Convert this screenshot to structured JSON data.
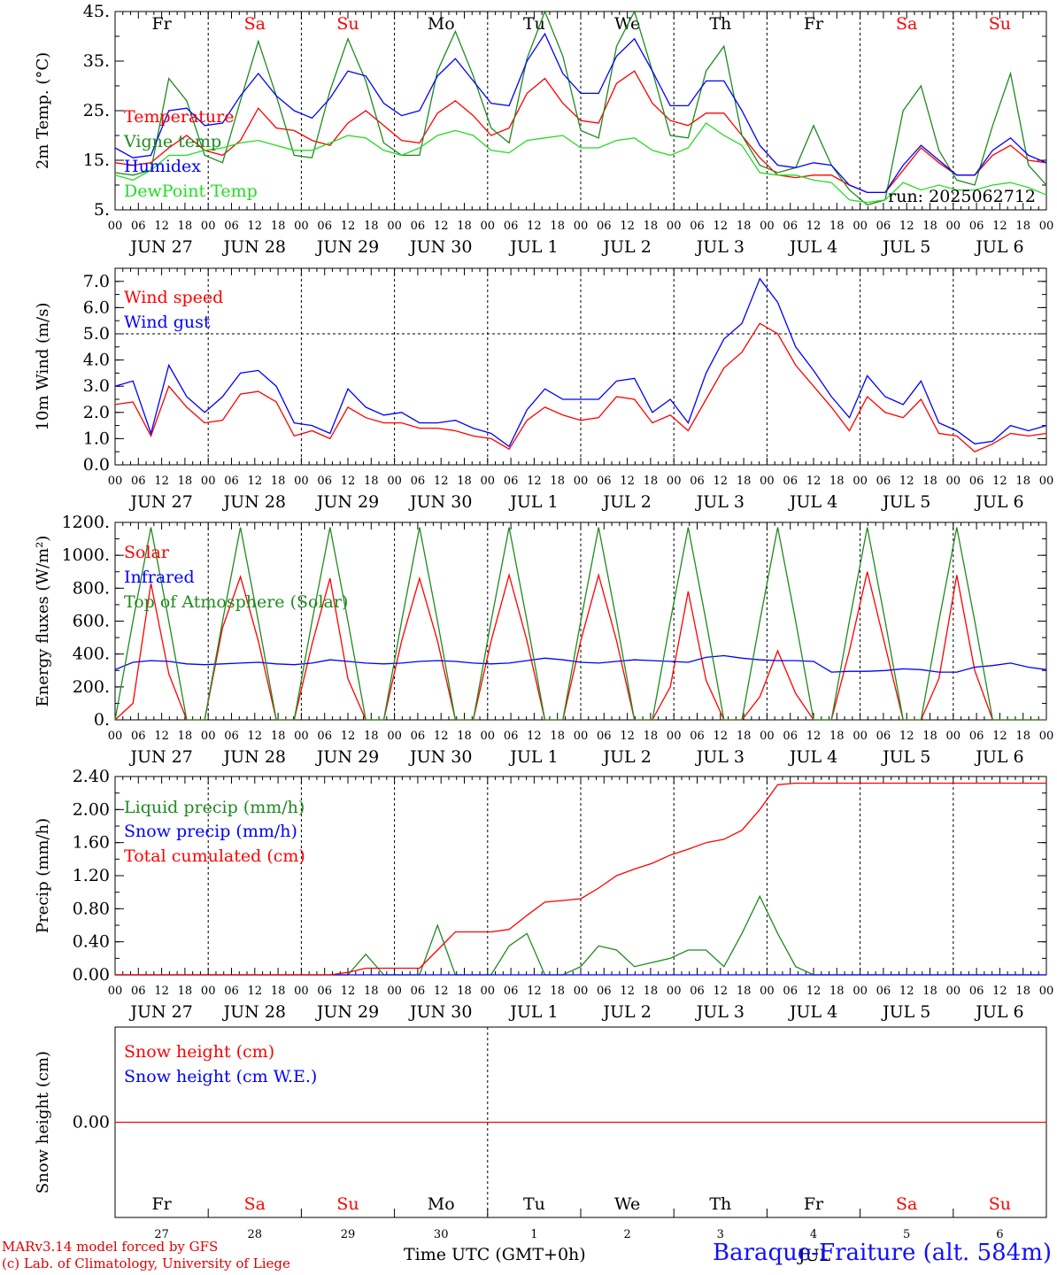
{
  "colors": {
    "temperature": "#ff0000",
    "vigne": "#1f8a1f",
    "humidex": "#0000ff",
    "dewpoint": "#22dd22",
    "weekend": "#ff0000",
    "weekday": "#000000"
  },
  "days": [
    {
      "abbr": "Fr",
      "weekend": false,
      "date": "JUN 27",
      "num": "27"
    },
    {
      "abbr": "Sa",
      "weekend": true,
      "date": "JUN 28",
      "num": "28"
    },
    {
      "abbr": "Su",
      "weekend": true,
      "date": "JUN 29",
      "num": "29"
    },
    {
      "abbr": "Mo",
      "weekend": false,
      "date": "JUN 30",
      "num": "30"
    },
    {
      "abbr": "Tu",
      "weekend": false,
      "date": "JUL  1",
      "num": "1"
    },
    {
      "abbr": "We",
      "weekend": false,
      "date": "JUL  2",
      "num": "2"
    },
    {
      "abbr": "Th",
      "weekend": false,
      "date": "JUL  3",
      "num": "3"
    },
    {
      "abbr": "Fr",
      "weekend": false,
      "date": "JUL  4",
      "num": "4"
    },
    {
      "abbr": "Sa",
      "weekend": true,
      "date": "JUL  5",
      "num": "5"
    },
    {
      "abbr": "Su",
      "weekend": true,
      "date": "JUL  6",
      "num": "6"
    }
  ],
  "hour_ticks": [
    "00",
    "06",
    "12",
    "18"
  ],
  "footer": {
    "model_line1": "MARv3.14 model forced by GFS",
    "model_line2": "(c) Lab. of Climatology, University of Liege",
    "xlabel": "Time UTC (GMT+0h)",
    "station": "Baraque-Fraiture (alt. 584m)",
    "overlap_text": "JUL"
  },
  "chart_data": [
    {
      "type": "line",
      "ylabel": "2m Temp. (°C)",
      "ylim": [
        5,
        45
      ],
      "yticks": [
        "5.",
        "15.",
        "25.",
        "35.",
        "45."
      ],
      "annotation": "run: 2025062712",
      "show_day_abbr": true,
      "x_hours_step": 6,
      "series": [
        {
          "name": "Temperature",
          "color": "#ff0000",
          "values": [
            14.5,
            14,
            14.5,
            17.5,
            20,
            17,
            16,
            19,
            25.5,
            21.5,
            21,
            19,
            18,
            22.5,
            25,
            22,
            19,
            18.5,
            24.5,
            27,
            24,
            20,
            21.5,
            28.5,
            31.5,
            26.5,
            23,
            22.5,
            30.5,
            33,
            26.5,
            23,
            22,
            24.5,
            24.5,
            20,
            15.5,
            12,
            11.5,
            12,
            12,
            10,
            8.5,
            8.5,
            13,
            17.5,
            14.5,
            12,
            12,
            16,
            18,
            15,
            14.5
          ]
        },
        {
          "name": "Vigne temp",
          "color": "#1f8a1f",
          "values": [
            12.5,
            12,
            13,
            31.5,
            27,
            16,
            14.5,
            27,
            39,
            28,
            16,
            15.5,
            29,
            39.5,
            31,
            18.5,
            16,
            16,
            33,
            41,
            32,
            21.5,
            18.5,
            35.5,
            45,
            36,
            21,
            19.5,
            38,
            45,
            33,
            20,
            19.5,
            33,
            38,
            20,
            14,
            12.5,
            13.5,
            22,
            14,
            9,
            6,
            7,
            25,
            30,
            17,
            11,
            10,
            22,
            32.5,
            14,
            10
          ]
        },
        {
          "name": "Humidex",
          "color": "#0000ff",
          "values": [
            17.5,
            15.5,
            16,
            25,
            25.5,
            22,
            22.5,
            28,
            32.5,
            28,
            25,
            23.5,
            27.5,
            33,
            32,
            26.5,
            24,
            25,
            32,
            35.5,
            31,
            26.5,
            26,
            35,
            40.5,
            32.5,
            28.5,
            28.5,
            36,
            39.5,
            33,
            26,
            26,
            31,
            31,
            25,
            18,
            14,
            13.5,
            14.5,
            14,
            10,
            8.5,
            8.5,
            14,
            18,
            15,
            12,
            12,
            17,
            19.5,
            16,
            14.5
          ]
        },
        {
          "name": "DewPoint Temp",
          "color": "#22dd22",
          "values": [
            12,
            11,
            13,
            16,
            16,
            17,
            17.5,
            18.5,
            19,
            18,
            17,
            17,
            18.5,
            20,
            19.5,
            17,
            16,
            17.5,
            20,
            21,
            20,
            17,
            16.5,
            19,
            19.5,
            20,
            17.5,
            17.5,
            19,
            19.5,
            17,
            16,
            17.5,
            22.5,
            20,
            18,
            12.5,
            12,
            12,
            11,
            10.5,
            7,
            6.5,
            7,
            10.5,
            9,
            10,
            9,
            9,
            10,
            10.5,
            9.5,
            8
          ]
        }
      ]
    },
    {
      "type": "line",
      "ylabel": "10m Wind (m/s)",
      "ylim": [
        0,
        7.5
      ],
      "yticks": [
        "0.0",
        "1.0",
        "2.0",
        "3.0",
        "4.0",
        "5.0",
        "6.0",
        "7.0"
      ],
      "hline": 5.0,
      "show_day_abbr": false,
      "x_hours_step": 6,
      "series": [
        {
          "name": "Wind speed",
          "color": "#ff0000",
          "values": [
            2.3,
            2.4,
            1.1,
            3.0,
            2.2,
            1.6,
            1.7,
            2.7,
            2.8,
            2.4,
            1.1,
            1.3,
            1.0,
            2.2,
            1.8,
            1.6,
            1.6,
            1.4,
            1.4,
            1.3,
            1.1,
            1.0,
            0.6,
            1.7,
            2.2,
            1.9,
            1.7,
            1.8,
            2.6,
            2.5,
            1.6,
            1.9,
            1.3,
            2.5,
            3.7,
            4.3,
            5.4,
            5.0,
            3.8,
            3.0,
            2.2,
            1.3,
            2.6,
            2.0,
            1.8,
            2.5,
            1.2,
            1.1,
            0.5,
            0.8,
            1.2,
            1.1,
            1.2
          ]
        },
        {
          "name": "Wind gust",
          "color": "#0000ff",
          "values": [
            3.0,
            3.2,
            1.2,
            3.8,
            2.6,
            2.0,
            2.6,
            3.5,
            3.6,
            3.0,
            1.6,
            1.5,
            1.2,
            2.9,
            2.2,
            1.9,
            2.0,
            1.6,
            1.6,
            1.7,
            1.4,
            1.2,
            0.7,
            2.1,
            2.9,
            2.5,
            2.5,
            2.5,
            3.2,
            3.3,
            2.0,
            2.5,
            1.6,
            3.5,
            4.8,
            5.4,
            7.1,
            6.2,
            4.5,
            3.6,
            2.6,
            1.8,
            3.4,
            2.6,
            2.3,
            3.2,
            1.6,
            1.3,
            0.8,
            0.9,
            1.5,
            1.3,
            1.5
          ]
        }
      ]
    },
    {
      "type": "line",
      "ylabel": "Energy fluxes (W/m²)",
      "ylim": [
        0,
        1200
      ],
      "yticks": [
        "0.",
        "200.",
        "400.",
        "600.",
        "800.",
        "1000.",
        "1200."
      ],
      "show_day_abbr": false,
      "x_hours_step": 6,
      "series": [
        {
          "name": "Solar",
          "color": "#ff0000",
          "values": [
            0,
            100,
            830,
            280,
            0,
            0,
            560,
            870,
            480,
            0,
            0,
            460,
            860,
            250,
            0,
            0,
            480,
            860,
            480,
            0,
            0,
            480,
            880,
            480,
            0,
            0,
            480,
            880,
            480,
            0,
            0,
            200,
            780,
            240,
            0,
            0,
            140,
            420,
            160,
            0,
            0,
            420,
            900,
            450,
            0,
            0,
            250,
            880,
            300,
            0,
            0,
            0,
            0
          ]
        },
        {
          "name": "Infrared",
          "color": "#0000ff",
          "values": [
            305,
            350,
            360,
            355,
            340,
            335,
            340,
            345,
            350,
            340,
            335,
            345,
            365,
            355,
            345,
            340,
            345,
            355,
            360,
            355,
            345,
            340,
            345,
            360,
            375,
            365,
            350,
            345,
            355,
            365,
            360,
            355,
            350,
            380,
            390,
            375,
            365,
            360,
            360,
            355,
            290,
            295,
            295,
            300,
            310,
            305,
            290,
            290,
            320,
            330,
            345,
            320,
            305
          ]
        },
        {
          "name": "Top of Atmosphere (Solar)",
          "color": "#1f8a1f",
          "values": [
            0,
            600,
            1170,
            600,
            0,
            0,
            600,
            1170,
            600,
            0,
            0,
            600,
            1170,
            600,
            0,
            0,
            600,
            1170,
            600,
            0,
            0,
            600,
            1170,
            600,
            0,
            0,
            600,
            1170,
            600,
            0,
            0,
            600,
            1170,
            600,
            0,
            0,
            600,
            1170,
            600,
            0,
            0,
            600,
            1170,
            600,
            0,
            0,
            600,
            1170,
            600,
            0,
            0,
            0,
            0
          ]
        }
      ]
    },
    {
      "type": "line",
      "ylabel": "Precip (mm/h)",
      "ylim": [
        0,
        2.4
      ],
      "yticks": [
        "0.00",
        "0.40",
        "0.80",
        "1.20",
        "1.60",
        "2.00",
        "2.40"
      ],
      "show_day_abbr": false,
      "x_hours_step": 6,
      "series": [
        {
          "name": "Liquid precip (mm/h)",
          "color": "#1f8a1f",
          "values": [
            0,
            0,
            0,
            0,
            0,
            0,
            0,
            0,
            0,
            0,
            0,
            0,
            0,
            0,
            0.25,
            0,
            0,
            0,
            0.6,
            0,
            0,
            0,
            0.35,
            0.5,
            0,
            0,
            0.1,
            0.35,
            0.3,
            0.1,
            0.15,
            0.2,
            0.3,
            0.3,
            0.1,
            0.5,
            0.95,
            0.5,
            0.1,
            0,
            0,
            0,
            0,
            0,
            0,
            0,
            0,
            0,
            0,
            0,
            0,
            0,
            0
          ]
        },
        {
          "name": "Snow precip (mm/h)",
          "color": "#0000ff",
          "values": [
            0,
            0,
            0,
            0,
            0,
            0,
            0,
            0,
            0,
            0,
            0,
            0,
            0,
            0,
            0,
            0,
            0,
            0,
            0,
            0,
            0,
            0,
            0,
            0,
            0,
            0,
            0,
            0,
            0,
            0,
            0,
            0,
            0,
            0,
            0,
            0,
            0,
            0,
            0,
            0,
            0,
            0,
            0,
            0,
            0,
            0,
            0,
            0,
            0,
            0,
            0,
            0,
            0
          ]
        },
        {
          "name": "Total cumulated (cm)",
          "color": "#ff0000",
          "values": [
            0,
            0,
            0,
            0,
            0,
            0,
            0,
            0,
            0,
            0,
            0,
            0,
            0,
            0.03,
            0.08,
            0.08,
            0.08,
            0.08,
            0.3,
            0.52,
            0.52,
            0.52,
            0.55,
            0.72,
            0.88,
            0.9,
            0.92,
            1.05,
            1.2,
            1.28,
            1.35,
            1.45,
            1.52,
            1.6,
            1.64,
            1.75,
            2.0,
            2.3,
            2.32,
            2.32,
            2.32,
            2.32,
            2.32,
            2.32,
            2.32,
            2.32,
            2.32,
            2.32,
            2.32,
            2.32,
            2.32,
            2.32,
            2.32
          ]
        }
      ]
    },
    {
      "type": "line",
      "ylabel": "Snow height (cm)",
      "ylim": [
        -1,
        1
      ],
      "yticks": [
        "0.00"
      ],
      "show_day_abbr": true,
      "x_hours_step": 6,
      "series": [
        {
          "name": "Snow height (cm)",
          "color": "#ff0000",
          "values": [
            0,
            0,
            0,
            0,
            0,
            0,
            0,
            0,
            0,
            0,
            0,
            0,
            0,
            0,
            0,
            0,
            0,
            0,
            0,
            0,
            0,
            0,
            0,
            0,
            0,
            0,
            0,
            0,
            0,
            0,
            0,
            0,
            0,
            0,
            0,
            0,
            0,
            0,
            0,
            0,
            0,
            0,
            0,
            0,
            0,
            0,
            0,
            0,
            0,
            0,
            0,
            0,
            0
          ]
        },
        {
          "name": "Snow height (cm W.E.)",
          "color": "#0000ff",
          "values": []
        }
      ]
    }
  ]
}
